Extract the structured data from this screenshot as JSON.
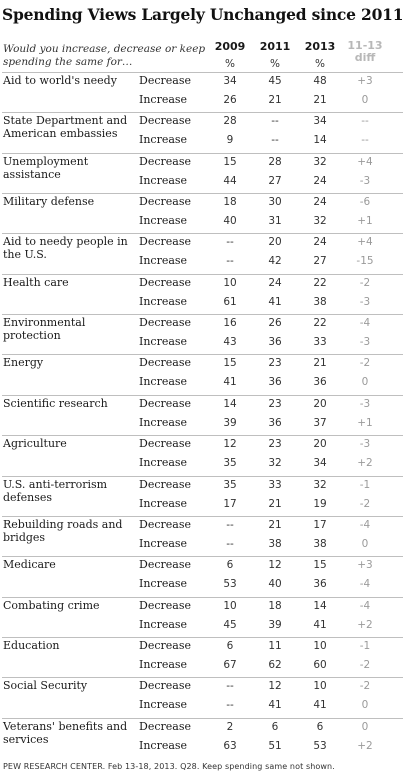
{
  "title": "Spending Views Largely Unchanged since 2011",
  "question": "Would you increase, decrease or keep spending the same for…",
  "columns": [
    "2009",
    "2011",
    "2013"
  ],
  "unit": "%",
  "diff_label": [
    "11-13",
    "diff"
  ],
  "footer": "PEW RESEARCH CENTER. Feb 13-18, 2013. Q28. Keep spending same not shown.",
  "chart_data": {
    "type": "table",
    "columns": [
      "2009",
      "2011",
      "2013",
      "11-13 diff"
    ],
    "rows": [
      {
        "item": "Aid to world's needy",
        "decrease": [
          "34",
          "45",
          "48",
          "+3"
        ],
        "increase": [
          "26",
          "21",
          "21",
          "0"
        ]
      },
      {
        "item": "State Department and American embassies",
        "decrease": [
          "28",
          "--",
          "34",
          "--"
        ],
        "increase": [
          "9",
          "--",
          "14",
          "--"
        ]
      },
      {
        "item": "Unemployment assistance",
        "decrease": [
          "15",
          "28",
          "32",
          "+4"
        ],
        "increase": [
          "44",
          "27",
          "24",
          "-3"
        ]
      },
      {
        "item": "Military defense",
        "decrease": [
          "18",
          "30",
          "24",
          "-6"
        ],
        "increase": [
          "40",
          "31",
          "32",
          "+1"
        ]
      },
      {
        "item": "Aid to needy people in the U.S.",
        "decrease": [
          "--",
          "20",
          "24",
          "+4"
        ],
        "increase": [
          "--",
          "42",
          "27",
          "-15"
        ]
      },
      {
        "item": "Health care",
        "decrease": [
          "10",
          "24",
          "22",
          "-2"
        ],
        "increase": [
          "61",
          "41",
          "38",
          "-3"
        ]
      },
      {
        "item": "Environmental protection",
        "decrease": [
          "16",
          "26",
          "22",
          "-4"
        ],
        "increase": [
          "43",
          "36",
          "33",
          "-3"
        ]
      },
      {
        "item": "Energy",
        "decrease": [
          "15",
          "23",
          "21",
          "-2"
        ],
        "increase": [
          "41",
          "36",
          "36",
          "0"
        ]
      },
      {
        "item": "Scientific research",
        "decrease": [
          "14",
          "23",
          "20",
          "-3"
        ],
        "increase": [
          "39",
          "36",
          "37",
          "+1"
        ]
      },
      {
        "item": "Agriculture",
        "decrease": [
          "12",
          "23",
          "20",
          "-3"
        ],
        "increase": [
          "35",
          "32",
          "34",
          "+2"
        ]
      },
      {
        "item": "U.S. anti-terrorism defenses",
        "decrease": [
          "35",
          "33",
          "32",
          "-1"
        ],
        "increase": [
          "17",
          "21",
          "19",
          "-2"
        ]
      },
      {
        "item": "Rebuilding roads and bridges",
        "decrease": [
          "--",
          "21",
          "17",
          "-4"
        ],
        "increase": [
          "--",
          "38",
          "38",
          "0"
        ]
      },
      {
        "item": "Medicare",
        "decrease": [
          "6",
          "12",
          "15",
          "+3"
        ],
        "increase": [
          "53",
          "40",
          "36",
          "-4"
        ]
      },
      {
        "item": "Combating crime",
        "decrease": [
          "10",
          "18",
          "14",
          "-4"
        ],
        "increase": [
          "45",
          "39",
          "41",
          "+2"
        ]
      },
      {
        "item": "Education",
        "decrease": [
          "6",
          "11",
          "10",
          "-1"
        ],
        "increase": [
          "67",
          "62",
          "60",
          "-2"
        ]
      },
      {
        "item": "Social Security",
        "decrease": [
          "--",
          "12",
          "10",
          "-2"
        ],
        "increase": [
          "--",
          "41",
          "41",
          "0"
        ]
      },
      {
        "item": "Veterans' benefits and services",
        "decrease": [
          "2",
          "6",
          "6",
          "0"
        ],
        "increase": [
          "63",
          "51",
          "53",
          "+2"
        ]
      }
    ],
    "row_labels": [
      "Decrease",
      "Increase"
    ]
  }
}
